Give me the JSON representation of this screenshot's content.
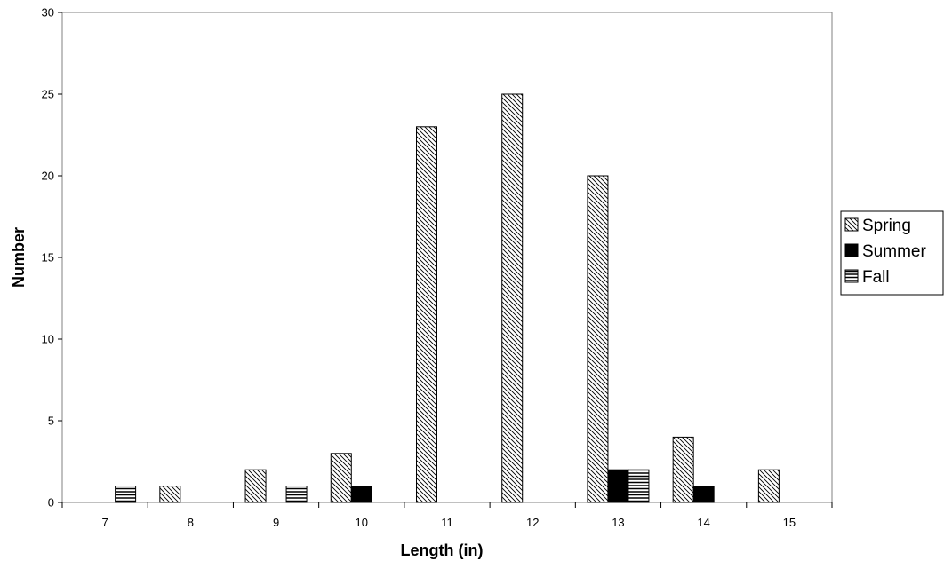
{
  "chart_data": {
    "type": "bar",
    "title": "",
    "xlabel": "Length (in)",
    "ylabel": "Number",
    "categories": [
      "7",
      "8",
      "9",
      "10",
      "11",
      "12",
      "13",
      "14",
      "15"
    ],
    "ylim": [
      0,
      30
    ],
    "yticks": [
      0,
      5,
      10,
      15,
      20,
      25,
      30
    ],
    "grid": false,
    "legend_position": "right",
    "series": [
      {
        "name": "Spring",
        "pattern": "diagonal-hatch",
        "values": [
          0,
          1,
          2,
          3,
          23,
          25,
          20,
          4,
          2
        ]
      },
      {
        "name": "Summer",
        "pattern": "solid-black",
        "values": [
          0,
          0,
          0,
          1,
          0,
          0,
          2,
          1,
          0
        ]
      },
      {
        "name": "Fall",
        "pattern": "horizontal-stripes",
        "values": [
          1,
          0,
          1,
          0,
          0,
          0,
          2,
          0,
          0
        ]
      }
    ]
  }
}
